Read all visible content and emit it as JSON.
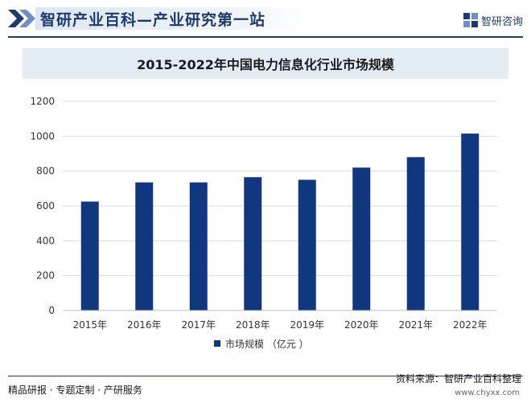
{
  "header": {
    "site_title": "智研产业百科—产业研究第一站",
    "logo_text": "智研咨询"
  },
  "footer": {
    "left_text": "精品研报 · 专题定制 · 产研服务",
    "source": "资料来源：智研产业百科整理",
    "url": "www.chyxx.com"
  },
  "colors": {
    "bar": "#11377f",
    "brand": "#1f3a6b",
    "grid": "#d9d9d9"
  },
  "chart_data": {
    "type": "bar",
    "title": "2015-2022年中国电力信息化行业市场规模",
    "categories": [
      "2015年",
      "2016年",
      "2017年",
      "2018年",
      "2019年",
      "2020年",
      "2021年",
      "2022年"
    ],
    "series": [
      {
        "name": "市场规模 （亿元 ）",
        "values": [
          625,
          735,
          735,
          765,
          750,
          820,
          880,
          1015
        ]
      }
    ],
    "yticks": [
      0,
      200,
      400,
      600,
      800,
      1000,
      1200
    ],
    "ylim": [
      0,
      1200
    ],
    "xlabel": "",
    "ylabel": "",
    "grid": true,
    "legend": "bottom-center"
  }
}
